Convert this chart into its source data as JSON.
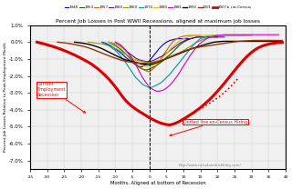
{
  "title": "Percent Job Losses in Post WWII Recessions, aligned at maximum job losses",
  "xlabel": "Months, Aligned at bottom of Recession",
  "ylabel": "Percent Job Losses Relative to Peak Employment Month",
  "url_text": "http://www.calculatedriskblog.com/",
  "xlim": [
    -35,
    40
  ],
  "ylim": [
    -7.5,
    1.0
  ],
  "yticks": [
    1.0,
    0.0,
    -1.0,
    -2.0,
    -3.0,
    -4.0,
    -5.0,
    -6.0,
    -7.0
  ],
  "ytick_labels": [
    "1.0%",
    "0.0%",
    "-1.0%",
    "-2.0%",
    "-3.0%",
    "-4.0%",
    "-5.0%",
    "-6.0%",
    "-7.0%"
  ],
  "annotation1": "Current\nEmployment\nRecession",
  "annotation2": "Dotted line ex-Census Hiring",
  "background_color": "#f0f0f0",
  "grid_color": "#cccccc",
  "recessions": [
    {
      "year": "1948",
      "color": "#0000cc",
      "lw": 0.8
    },
    {
      "year": "1953",
      "color": "#006600",
      "lw": 0.8
    },
    {
      "year": "1957",
      "color": "#cc6600",
      "lw": 0.8
    },
    {
      "year": "1960",
      "color": "#660099",
      "lw": 0.8
    },
    {
      "year": "1969",
      "color": "#999900",
      "lw": 0.8
    },
    {
      "year": "1974",
      "color": "#009999",
      "lw": 0.8
    },
    {
      "year": "1980",
      "color": "#cccc00",
      "lw": 0.8
    },
    {
      "year": "1981",
      "color": "#cc00cc",
      "lw": 0.8
    },
    {
      "year": "1990",
      "color": "#000000",
      "lw": 1.0
    },
    {
      "year": "2001",
      "color": "#993300",
      "lw": 1.0
    },
    {
      "year": "2007",
      "color": "#dd0000",
      "lw": 2.2
    }
  ],
  "recession_data": {
    "1948": {
      "x": [
        -14,
        -13,
        -12,
        -11,
        -10,
        -9,
        -8,
        -7,
        -6,
        -5,
        -4,
        -3,
        -2,
        -1,
        0,
        1,
        2,
        3,
        4,
        5,
        6,
        7,
        8,
        9,
        10,
        11,
        12
      ],
      "y": [
        0.0,
        -0.05,
        -0.15,
        -0.25,
        -0.4,
        -0.55,
        -0.7,
        -0.9,
        -1.05,
        -1.2,
        -1.35,
        -1.45,
        -1.45,
        -1.3,
        -1.1,
        -0.85,
        -0.6,
        -0.35,
        -0.15,
        0.0,
        0.1,
        0.15,
        0.2,
        0.2,
        0.2,
        0.2,
        0.2
      ]
    },
    "1953": {
      "x": [
        -12,
        -11,
        -10,
        -9,
        -8,
        -7,
        -6,
        -5,
        -4,
        -3,
        -2,
        -1,
        0,
        1,
        2,
        3,
        4,
        5,
        6,
        7,
        8,
        9,
        10,
        11,
        12,
        13,
        14,
        15,
        16,
        17,
        18,
        19,
        20
      ],
      "y": [
        0.0,
        -0.1,
        -0.2,
        -0.35,
        -0.5,
        -0.7,
        -0.9,
        -1.1,
        -1.3,
        -1.5,
        -1.6,
        -1.65,
        -1.6,
        -1.5,
        -1.4,
        -1.25,
        -1.1,
        -0.9,
        -0.75,
        -0.55,
        -0.35,
        -0.15,
        0.0,
        0.1,
        0.2,
        0.25,
        0.3,
        0.3,
        0.3,
        0.3,
        0.3,
        0.3,
        0.3
      ]
    },
    "1957": {
      "x": [
        -10,
        -9,
        -8,
        -7,
        -6,
        -5,
        -4,
        -3,
        -2,
        -1,
        0,
        1,
        2,
        3,
        4,
        5,
        6,
        7,
        8,
        9,
        10,
        11,
        12,
        13,
        14,
        15
      ],
      "y": [
        0.0,
        -0.1,
        -0.25,
        -0.5,
        -0.75,
        -1.0,
        -1.25,
        -1.45,
        -1.6,
        -1.7,
        -1.75,
        -1.6,
        -1.4,
        -1.1,
        -0.8,
        -0.5,
        -0.2,
        0.05,
        0.2,
        0.3,
        0.35,
        0.38,
        0.4,
        0.4,
        0.4,
        0.4
      ]
    },
    "1960": {
      "x": [
        -12,
        -11,
        -10,
        -9,
        -8,
        -7,
        -6,
        -5,
        -4,
        -3,
        -2,
        -1,
        0,
        1,
        2,
        3,
        4,
        5,
        6,
        7,
        8,
        9,
        10,
        11,
        12,
        13,
        14,
        15,
        16,
        17,
        18,
        19,
        20,
        21,
        22
      ],
      "y": [
        0.0,
        -0.05,
        -0.1,
        -0.2,
        -0.35,
        -0.5,
        -0.65,
        -0.8,
        -0.95,
        -1.05,
        -1.1,
        -1.15,
        -1.15,
        -1.1,
        -1.0,
        -0.9,
        -0.8,
        -0.65,
        -0.5,
        -0.35,
        -0.2,
        -0.05,
        0.05,
        0.15,
        0.2,
        0.25,
        0.3,
        0.3,
        0.3,
        0.3,
        0.3,
        0.3,
        0.3,
        0.3,
        0.3
      ]
    },
    "1969": {
      "x": [
        -18,
        -17,
        -16,
        -15,
        -14,
        -13,
        -12,
        -11,
        -10,
        -9,
        -8,
        -7,
        -6,
        -5,
        -4,
        -3,
        -2,
        -1,
        0,
        1,
        2,
        3,
        4,
        5,
        6,
        7,
        8,
        9,
        10,
        11,
        12,
        13,
        14,
        15,
        16,
        17,
        18,
        19,
        20,
        21,
        22,
        23,
        24,
        25,
        26,
        27,
        28
      ],
      "y": [
        0.0,
        -0.02,
        -0.05,
        -0.08,
        -0.1,
        -0.15,
        -0.2,
        -0.28,
        -0.37,
        -0.48,
        -0.6,
        -0.72,
        -0.85,
        -0.98,
        -1.05,
        -1.1,
        -1.15,
        -1.18,
        -1.2,
        -1.17,
        -1.12,
        -1.07,
        -1.02,
        -0.96,
        -0.9,
        -0.82,
        -0.72,
        -0.62,
        -0.5,
        -0.38,
        -0.25,
        -0.12,
        0.0,
        0.1,
        0.18,
        0.25,
        0.3,
        0.35,
        0.38,
        0.4,
        0.4,
        0.4,
        0.4,
        0.4,
        0.4,
        0.4,
        0.4
      ]
    },
    "1974": {
      "x": [
        -14,
        -13,
        -12,
        -11,
        -10,
        -9,
        -8,
        -7,
        -6,
        -5,
        -4,
        -3,
        -2,
        -1,
        0,
        1,
        2,
        3,
        4,
        5,
        6,
        7,
        8,
        9,
        10,
        11,
        12,
        13,
        14,
        15,
        16,
        17,
        18,
        19,
        20,
        21,
        22,
        23,
        24,
        25,
        26,
        27,
        28,
        29,
        30
      ],
      "y": [
        0.0,
        -0.1,
        -0.2,
        -0.35,
        -0.5,
        -0.7,
        -0.95,
        -1.2,
        -1.5,
        -1.8,
        -2.1,
        -2.3,
        -2.5,
        -2.6,
        -2.7,
        -2.65,
        -2.55,
        -2.45,
        -2.3,
        -2.1,
        -1.9,
        -1.65,
        -1.4,
        -1.15,
        -0.9,
        -0.65,
        -0.4,
        -0.15,
        0.05,
        0.2,
        0.3,
        0.35,
        0.4,
        0.4,
        0.4,
        0.4,
        0.4,
        0.4,
        0.4,
        0.4,
        0.4,
        0.4,
        0.4,
        0.4,
        0.4
      ]
    },
    "1980": {
      "x": [
        -12,
        -11,
        -10,
        -9,
        -8,
        -7,
        -6,
        -5,
        -4,
        -3,
        -2,
        -1,
        0,
        1,
        2,
        3,
        4,
        5,
        6,
        7,
        8,
        9,
        10,
        11,
        12,
        13,
        14,
        15,
        16,
        17,
        18,
        19,
        20,
        21,
        22,
        23,
        24,
        25,
        26,
        27,
        28,
        29,
        30
      ],
      "y": [
        0.0,
        -0.05,
        -0.12,
        -0.22,
        -0.35,
        -0.52,
        -0.72,
        -0.92,
        -1.1,
        -1.25,
        -1.38,
        -1.45,
        -1.5,
        -1.42,
        -1.3,
        -1.12,
        -0.9,
        -0.68,
        -0.45,
        -0.22,
        -0.05,
        0.1,
        0.2,
        0.28,
        0.33,
        0.36,
        0.38,
        0.4,
        0.4,
        0.4,
        0.4,
        0.4,
        0.4,
        0.4,
        0.4,
        0.4,
        0.4,
        0.4,
        0.4,
        0.4,
        0.4,
        0.4,
        0.4
      ]
    },
    "1981": {
      "x": [
        -10,
        -9,
        -8,
        -7,
        -6,
        -5,
        -4,
        -3,
        -2,
        -1,
        0,
        1,
        2,
        3,
        4,
        5,
        6,
        7,
        8,
        9,
        10,
        11,
        12,
        13,
        14,
        15,
        16,
        17,
        18,
        19,
        20,
        21,
        22,
        23,
        24,
        25,
        26,
        27,
        28,
        29,
        30,
        31,
        32,
        33,
        34,
        35,
        36,
        37,
        38
      ],
      "y": [
        0.0,
        -0.1,
        -0.25,
        -0.45,
        -0.7,
        -1.0,
        -1.35,
        -1.72,
        -2.1,
        -2.4,
        -2.65,
        -2.8,
        -2.9,
        -2.9,
        -2.85,
        -2.72,
        -2.55,
        -2.32,
        -2.05,
        -1.75,
        -1.42,
        -1.1,
        -0.78,
        -0.5,
        -0.25,
        -0.05,
        0.1,
        0.22,
        0.3,
        0.36,
        0.4,
        0.42,
        0.44,
        0.44,
        0.44,
        0.44,
        0.44,
        0.44,
        0.44,
        0.44,
        0.44,
        0.44,
        0.44,
        0.44,
        0.44,
        0.44,
        0.44,
        0.44,
        0.44
      ]
    },
    "1990": {
      "x": [
        -22,
        -21,
        -20,
        -19,
        -18,
        -17,
        -16,
        -15,
        -14,
        -13,
        -12,
        -11,
        -10,
        -9,
        -8,
        -7,
        -6,
        -5,
        -4,
        -3,
        -2,
        -1,
        0,
        1,
        2,
        3,
        4,
        5,
        6,
        7,
        8,
        9,
        10,
        11,
        12,
        13,
        14,
        15,
        16,
        17,
        18,
        19,
        20,
        21,
        22,
        23,
        24,
        25,
        26,
        27,
        28,
        29,
        30,
        31,
        32,
        33,
        34,
        35,
        36,
        37,
        38,
        39
      ],
      "y": [
        0.0,
        -0.02,
        -0.05,
        -0.08,
        -0.12,
        -0.17,
        -0.23,
        -0.3,
        -0.38,
        -0.48,
        -0.58,
        -0.68,
        -0.78,
        -0.88,
        -0.97,
        -1.05,
        -1.1,
        -1.15,
        -1.2,
        -1.25,
        -1.3,
        -1.33,
        -1.35,
        -1.3,
        -1.22,
        -1.15,
        -1.07,
        -0.98,
        -0.9,
        -0.82,
        -0.74,
        -0.66,
        -0.58,
        -0.5,
        -0.42,
        -0.35,
        -0.28,
        -0.22,
        -0.16,
        -0.1,
        -0.05,
        0.0,
        0.02,
        0.04,
        0.05,
        0.05,
        0.05,
        0.05,
        0.05,
        0.05,
        0.05,
        0.05,
        0.05,
        0.05,
        0.05,
        0.05,
        0.05,
        0.05,
        0.05,
        0.05,
        0.05,
        0.05
      ]
    },
    "2001": {
      "x": [
        -27,
        -26,
        -25,
        -24,
        -23,
        -22,
        -21,
        -20,
        -19,
        -18,
        -17,
        -16,
        -15,
        -14,
        -13,
        -12,
        -11,
        -10,
        -9,
        -8,
        -7,
        -6,
        -5,
        -4,
        -3,
        -2,
        -1,
        0,
        1,
        2,
        3,
        4,
        5,
        6,
        7,
        8,
        9,
        10,
        11,
        12,
        13,
        14,
        15,
        16,
        17,
        18,
        19,
        20,
        21,
        22,
        23,
        24,
        25,
        26,
        27,
        28,
        29,
        30,
        31,
        32,
        33,
        34,
        35,
        36,
        37,
        38,
        39
      ],
      "y": [
        0.0,
        -0.02,
        -0.04,
        -0.07,
        -0.1,
        -0.14,
        -0.18,
        -0.22,
        -0.27,
        -0.33,
        -0.4,
        -0.48,
        -0.56,
        -0.64,
        -0.72,
        -0.8,
        -0.88,
        -0.95,
        -1.02,
        -1.08,
        -1.13,
        -1.17,
        -1.2,
        -1.22,
        -1.24,
        -1.25,
        -1.25,
        -1.25,
        -1.22,
        -1.18,
        -1.12,
        -1.05,
        -0.97,
        -0.88,
        -0.79,
        -0.7,
        -0.62,
        -0.54,
        -0.47,
        -0.41,
        -0.36,
        -0.32,
        -0.28,
        -0.25,
        -0.22,
        -0.19,
        -0.16,
        -0.13,
        -0.1,
        -0.07,
        -0.04,
        -0.01,
        0.02,
        0.04,
        0.06,
        0.07,
        0.08,
        0.09,
        0.1,
        0.1,
        0.1,
        0.1,
        0.1,
        0.1,
        0.1,
        0.1,
        0.1
      ]
    },
    "2007_solid": {
      "x": [
        -33,
        -32,
        -31,
        -30,
        -29,
        -28,
        -27,
        -26,
        -25,
        -24,
        -23,
        -22,
        -21,
        -20,
        -19,
        -18,
        -17,
        -16,
        -15,
        -14,
        -13,
        -12,
        -11,
        -10,
        -9,
        -8,
        -7,
        -6,
        -5,
        -4,
        -3,
        -2,
        -1,
        0,
        1,
        2,
        3,
        4,
        5,
        6,
        7,
        8,
        9,
        10,
        11,
        12,
        13,
        14,
        15,
        16,
        17,
        18,
        19,
        20,
        21,
        22,
        23,
        24,
        25,
        26,
        27,
        28,
        29,
        30,
        31,
        32,
        33,
        34,
        35,
        36,
        37,
        38,
        39
      ],
      "y": [
        0.0,
        -0.05,
        -0.1,
        -0.16,
        -0.22,
        -0.28,
        -0.35,
        -0.42,
        -0.5,
        -0.58,
        -0.67,
        -0.76,
        -0.86,
        -0.96,
        -1.07,
        -1.18,
        -1.3,
        -1.45,
        -1.6,
        -1.78,
        -1.97,
        -2.17,
        -2.4,
        -2.65,
        -2.92,
        -3.2,
        -3.45,
        -3.65,
        -3.82,
        -3.97,
        -4.1,
        -4.22,
        -4.35,
        -4.48,
        -4.58,
        -4.68,
        -4.77,
        -4.83,
        -4.88,
        -4.9,
        -4.85,
        -4.77,
        -4.67,
        -4.55,
        -4.43,
        -4.3,
        -4.17,
        -4.02,
        -3.87,
        -3.7,
        -3.52,
        -3.33,
        -3.12,
        -2.9,
        -2.67,
        -2.43,
        -2.18,
        -1.93,
        -1.68,
        -1.43,
        -1.2,
        -0.98,
        -0.78,
        -0.6,
        -0.45,
        -0.33,
        -0.24,
        -0.17,
        -0.12,
        -0.08,
        -0.05,
        -0.03,
        -0.02
      ]
    },
    "2007_excensus": {
      "x": [
        -33,
        -32,
        -31,
        -30,
        -29,
        -28,
        -27,
        -26,
        -25,
        -24,
        -23,
        -22,
        -21,
        -20,
        -19,
        -18,
        -17,
        -16,
        -15,
        -14,
        -13,
        -12,
        -11,
        -10,
        -9,
        -8,
        -7,
        -6,
        -5,
        -4,
        -3,
        -2,
        -1,
        0,
        1,
        2,
        3,
        4,
        5,
        6,
        7,
        8,
        9,
        10,
        11,
        12,
        13,
        14,
        15,
        16,
        17,
        18,
        19,
        20,
        21,
        22,
        23,
        24,
        25,
        26
      ],
      "y": [
        0.0,
        -0.05,
        -0.1,
        -0.16,
        -0.22,
        -0.28,
        -0.35,
        -0.42,
        -0.5,
        -0.58,
        -0.67,
        -0.76,
        -0.86,
        -0.96,
        -1.07,
        -1.18,
        -1.3,
        -1.45,
        -1.6,
        -1.78,
        -1.97,
        -2.17,
        -2.4,
        -2.65,
        -2.92,
        -3.2,
        -3.45,
        -3.65,
        -3.82,
        -3.97,
        -4.1,
        -4.22,
        -4.35,
        -4.48,
        -4.58,
        -4.68,
        -4.77,
        -4.83,
        -4.88,
        -4.9,
        -4.85,
        -4.77,
        -4.67,
        -4.55,
        -4.43,
        -4.3,
        -4.17,
        -4.05,
        -3.93,
        -3.82,
        -3.7,
        -3.58,
        -3.45,
        -3.3,
        -3.15,
        -2.98,
        -2.8,
        -2.6,
        -2.38,
        -2.15
      ]
    }
  }
}
